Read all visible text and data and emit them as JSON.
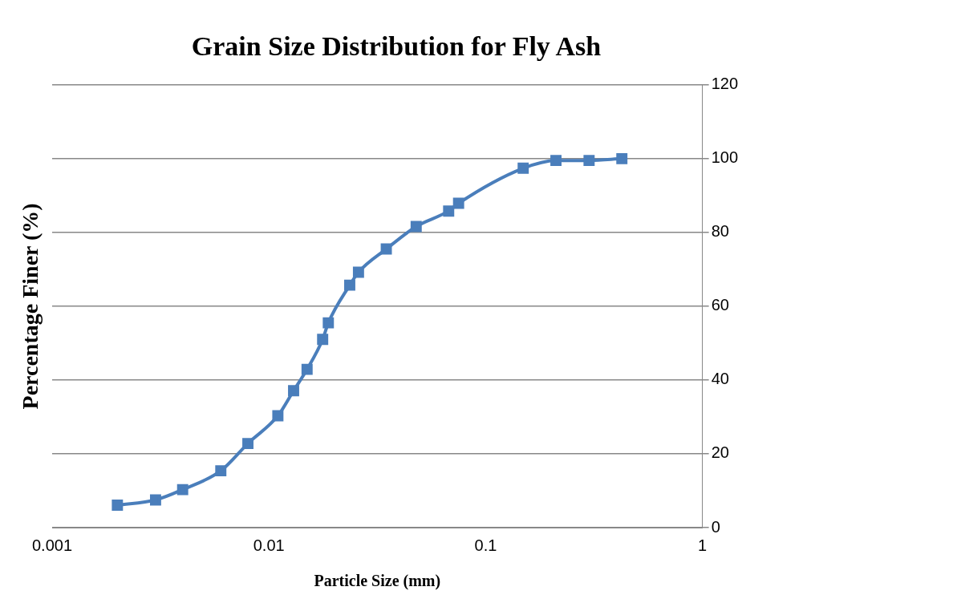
{
  "chart_data": {
    "type": "line",
    "title": "Grain Size Distribution for Fly Ash",
    "xlabel": "Particle Size (mm)",
    "ylabel": "Percentage Finer (%)",
    "log": "x",
    "xlim": [
      0.001,
      1
    ],
    "xticks": [
      0.001,
      0.01,
      0.1,
      1
    ],
    "ylim": [
      0,
      120
    ],
    "yticks": [
      0,
      20,
      40,
      60,
      80,
      100,
      120
    ],
    "grid": "y",
    "marker": "square",
    "line_style": "solid",
    "legend": false,
    "series": [
      {
        "color": "#4a7ebb",
        "x": [
          0.002,
          0.003,
          0.004,
          0.006,
          0.008,
          0.011,
          0.013,
          0.015,
          0.0177,
          0.0188,
          0.0236,
          0.0259,
          0.0348,
          0.0478,
          0.0675,
          0.075,
          0.149,
          0.211,
          0.3,
          0.425
        ],
        "values": [
          6.1,
          7.5,
          10.3,
          15.4,
          22.8,
          30.3,
          37.1,
          42.9,
          51.0,
          55.5,
          65.7,
          69.2,
          75.5,
          81.6,
          85.8,
          87.9,
          97.4,
          99.5,
          99.5,
          100
        ]
      }
    ]
  }
}
